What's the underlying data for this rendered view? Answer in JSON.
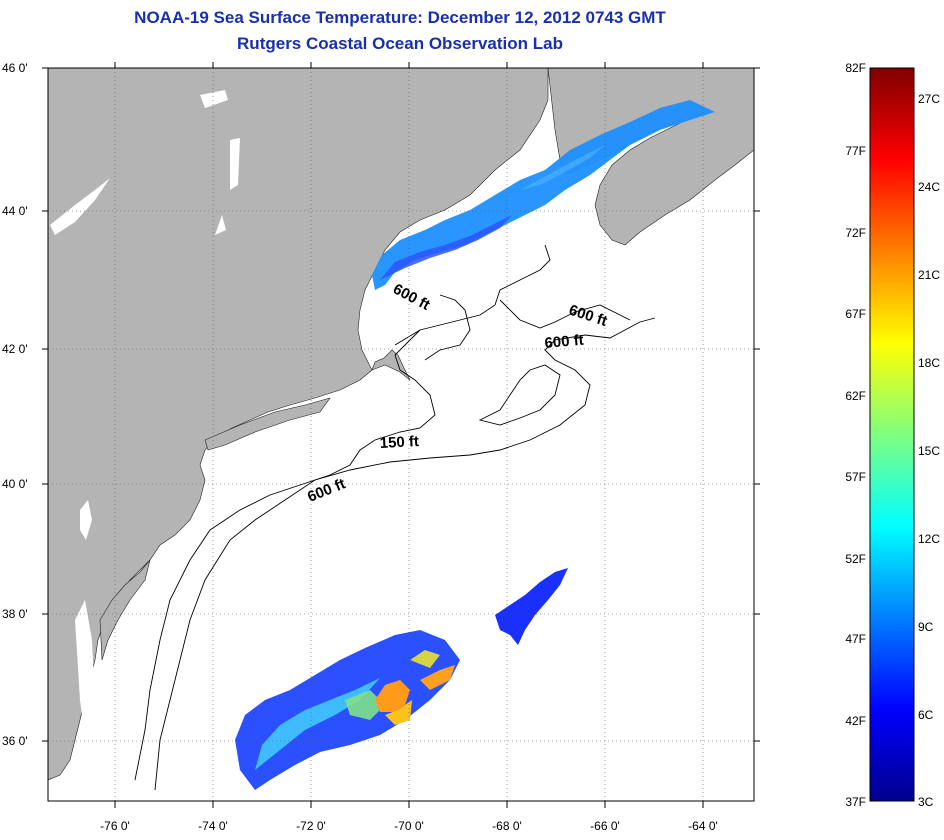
{
  "header": {
    "title": "NOAA-19 Sea Surface Temperature:  December 12, 2012 0743 GMT",
    "subtitle": "Rutgers Coastal Ocean Observation Lab"
  },
  "map": {
    "lat_labels": [
      "46 0'",
      "44 0'",
      "42 0'",
      "40 0'",
      "38 0'",
      "36 0'"
    ],
    "lat_values": [
      46,
      44,
      42,
      40,
      38,
      36
    ],
    "lon_labels": [
      "-76 0'",
      "-74 0'",
      "-72 0'",
      "-70 0'",
      "-68 0'",
      "-66 0'",
      "-64 0'"
    ],
    "lon_values": [
      -76,
      -74,
      -72,
      -70,
      -68,
      -66,
      -64
    ],
    "lon_range": [
      -77,
      -66.7
    ],
    "lat_range": [
      35,
      46
    ],
    "contour_labels": [
      "600 ft",
      "600 ft",
      "600 ft",
      "150 ft",
      "600 ft"
    ],
    "colors": {
      "land": "#b4b4b4",
      "ocean": "#ffffff",
      "contour": "#000000"
    }
  },
  "colorbar": {
    "fahrenheit_labels": [
      "82F",
      "77F",
      "72F",
      "67F",
      "62F",
      "57F",
      "52F",
      "47F",
      "42F",
      "37F"
    ],
    "celsius_labels": [
      "27C",
      "24C",
      "21C",
      "18C",
      "15C",
      "12C",
      "9C",
      "6C",
      "3C"
    ],
    "range_f": [
      37,
      82
    ],
    "colormap": "jet"
  }
}
